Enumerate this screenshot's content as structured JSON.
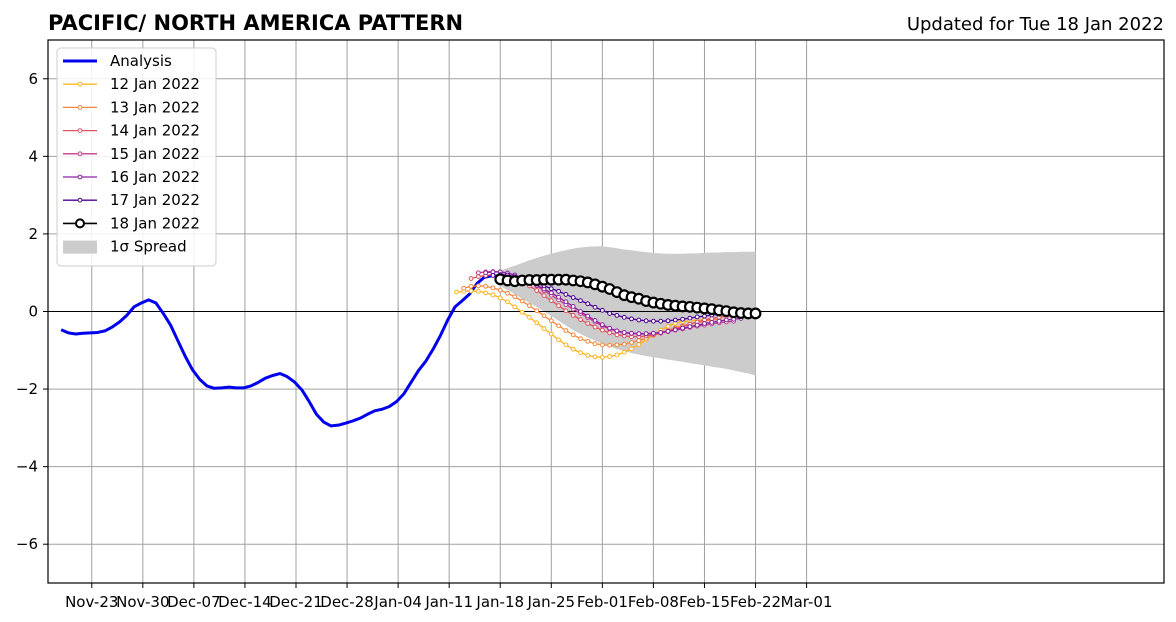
{
  "header": {
    "title": "PACIFIC/ NORTH AMERICA PATTERN",
    "updated": "Updated for Tue 18 Jan 2022"
  },
  "chart_data": {
    "type": "line",
    "title": "PACIFIC/ NORTH AMERICA PATTERN",
    "subtitle": "Updated for Tue 18 Jan 2022",
    "xlabel": "",
    "ylabel": "",
    "x_range_days": [
      -9,
      144
    ],
    "ylim": [
      -7,
      7
    ],
    "y_ticks": [
      -6,
      -4,
      -2,
      0,
      2,
      4,
      6
    ],
    "y_tick_labels": [
      "−6",
      "−4",
      "−2",
      "0",
      "2",
      "4",
      "6"
    ],
    "x_ticks": [
      {
        "label": "Nov-23",
        "day": -3
      },
      {
        "label": "Nov-30",
        "day": 4
      },
      {
        "label": "Dec-07",
        "day": 11
      },
      {
        "label": "Dec-14",
        "day": 18
      },
      {
        "label": "Dec-21",
        "day": 25
      },
      {
        "label": "Dec-28",
        "day": 32
      },
      {
        "label": "Jan-04",
        "day": 39
      },
      {
        "label": "Jan-11",
        "day": 46
      },
      {
        "label": "Jan-18",
        "day": 53
      },
      {
        "label": "Jan-25",
        "day": 60
      },
      {
        "label": "Feb-01",
        "day": 67
      },
      {
        "label": "Feb-08",
        "day": 74
      },
      {
        "label": "Feb-15",
        "day": 81
      },
      {
        "label": "Feb-22",
        "day": 88
      },
      {
        "label": "Mar-01",
        "day": 95
      }
    ],
    "grid": true,
    "legend_position": "top-left",
    "zero_line": true,
    "analysis": {
      "name": "Analysis",
      "color": "#0000ee",
      "points": [
        [
          -7.2,
          -0.47
        ],
        [
          -6.2,
          -0.55
        ],
        [
          -5.2,
          -0.58
        ],
        [
          -4.2,
          -0.56
        ],
        [
          -3.2,
          -0.55
        ],
        [
          -2.2,
          -0.54
        ],
        [
          -1.2,
          -0.5
        ],
        [
          -0.2,
          -0.4
        ],
        [
          0.8,
          -0.27
        ],
        [
          1.8,
          -0.1
        ],
        [
          2.8,
          0.12
        ],
        [
          3.8,
          0.22
        ],
        [
          4.8,
          0.3
        ],
        [
          5.8,
          0.22
        ],
        [
          6.8,
          -0.05
        ],
        [
          7.8,
          -0.35
        ],
        [
          8.8,
          -0.75
        ],
        [
          9.8,
          -1.15
        ],
        [
          10.8,
          -1.5
        ],
        [
          11.8,
          -1.75
        ],
        [
          12.8,
          -1.92
        ],
        [
          13.8,
          -1.98
        ],
        [
          14.8,
          -1.97
        ],
        [
          15.8,
          -1.95
        ],
        [
          16.8,
          -1.97
        ],
        [
          17.8,
          -1.97
        ],
        [
          18.8,
          -1.92
        ],
        [
          19.8,
          -1.83
        ],
        [
          20.8,
          -1.72
        ],
        [
          21.8,
          -1.65
        ],
        [
          22.8,
          -1.6
        ],
        [
          23.8,
          -1.68
        ],
        [
          24.8,
          -1.82
        ],
        [
          25.8,
          -2.02
        ],
        [
          26.8,
          -2.32
        ],
        [
          27.8,
          -2.65
        ],
        [
          28.8,
          -2.85
        ],
        [
          29.8,
          -2.95
        ],
        [
          30.8,
          -2.93
        ],
        [
          31.8,
          -2.88
        ],
        [
          32.8,
          -2.82
        ],
        [
          33.8,
          -2.75
        ],
        [
          34.8,
          -2.65
        ],
        [
          35.8,
          -2.56
        ],
        [
          36.8,
          -2.52
        ],
        [
          37.8,
          -2.45
        ],
        [
          38.8,
          -2.32
        ],
        [
          39.8,
          -2.12
        ],
        [
          40.8,
          -1.82
        ],
        [
          41.8,
          -1.52
        ],
        [
          42.8,
          -1.28
        ],
        [
          43.8,
          -0.97
        ],
        [
          44.8,
          -0.62
        ],
        [
          45.8,
          -0.22
        ],
        [
          46.8,
          0.12
        ],
        [
          47.8,
          0.28
        ],
        [
          48.8,
          0.45
        ],
        [
          49.8,
          0.72
        ],
        [
          50.8,
          0.88
        ],
        [
          51.8,
          0.92
        ]
      ]
    },
    "forecasts": [
      {
        "name": "12 Jan 2022",
        "color": "#ffb41f",
        "start_day": 47,
        "values": [
          0.5,
          0.52,
          0.53,
          0.52,
          0.48,
          0.43,
          0.35,
          0.25,
          0.12,
          -0.02,
          -0.15,
          -0.29,
          -0.44,
          -0.58,
          -0.73,
          -0.86,
          -0.97,
          -1.06,
          -1.13,
          -1.17,
          -1.18,
          -1.16,
          -1.12,
          -1.05,
          -0.96,
          -0.85,
          -0.73,
          -0.6,
          -0.48,
          -0.38,
          -0.3,
          -0.26,
          -0.24,
          -0.22,
          -0.21,
          -0.21
        ]
      },
      {
        "name": "13 Jan 2022",
        "color": "#f5883b",
        "start_day": 48,
        "values": [
          0.6,
          0.65,
          0.66,
          0.65,
          0.61,
          0.55,
          0.47,
          0.38,
          0.27,
          0.15,
          0.02,
          -0.11,
          -0.24,
          -0.37,
          -0.49,
          -0.6,
          -0.7,
          -0.77,
          -0.83,
          -0.86,
          -0.87,
          -0.86,
          -0.84,
          -0.8,
          -0.75,
          -0.69,
          -0.62,
          -0.55,
          -0.48,
          -0.42,
          -0.37,
          -0.32,
          -0.28,
          -0.25,
          -0.22,
          -0.2
        ]
      },
      {
        "name": "14 Jan 2022",
        "color": "#e0525e",
        "start_day": 49,
        "values": [
          0.85,
          0.9,
          0.93,
          0.95,
          0.93,
          0.9,
          0.84,
          0.76,
          0.66,
          0.54,
          0.41,
          0.28,
          0.15,
          0.02,
          -0.1,
          -0.21,
          -0.31,
          -0.4,
          -0.48,
          -0.55,
          -0.6,
          -0.63,
          -0.65,
          -0.65,
          -0.63,
          -0.6,
          -0.56,
          -0.51,
          -0.45,
          -0.39,
          -0.33,
          -0.27,
          -0.22,
          -0.18,
          -0.15,
          -0.12
        ]
      },
      {
        "name": "15 Jan 2022",
        "color": "#c43c8c",
        "start_day": 50,
        "values": [
          1.0,
          1.02,
          1.03,
          1.02,
          0.99,
          0.94,
          0.86,
          0.77,
          0.66,
          0.54,
          0.42,
          0.3,
          0.18,
          0.06,
          -0.05,
          -0.16,
          -0.27,
          -0.37,
          -0.45,
          -0.51,
          -0.55,
          -0.57,
          -0.58,
          -0.58,
          -0.57,
          -0.55,
          -0.52,
          -0.48,
          -0.45,
          -0.41,
          -0.38,
          -0.35,
          -0.32,
          -0.29,
          -0.27,
          -0.25
        ]
      },
      {
        "name": "16 Jan 2022",
        "color": "#8d22a5",
        "start_day": 51,
        "values": [
          1.0,
          1.02,
          1.02,
          0.99,
          0.94,
          0.87,
          0.78,
          0.68,
          0.58,
          0.48,
          0.37,
          0.25,
          0.13,
          0.0,
          -0.12,
          -0.23,
          -0.34,
          -0.43,
          -0.5,
          -0.54,
          -0.56,
          -0.57,
          -0.57,
          -0.56,
          -0.54,
          -0.51,
          -0.47,
          -0.43,
          -0.39,
          -0.35,
          -0.31,
          -0.28,
          -0.25,
          -0.22,
          -0.2,
          -0.18
        ]
      },
      {
        "name": "17 Jan 2022",
        "color": "#4c0095",
        "start_day": 52,
        "values": [
          0.93,
          0.95,
          0.94,
          0.9,
          0.86,
          0.8,
          0.73,
          0.66,
          0.59,
          0.52,
          0.44,
          0.36,
          0.28,
          0.2,
          0.11,
          0.03,
          -0.05,
          -0.1,
          -0.15,
          -0.19,
          -0.22,
          -0.24,
          -0.25,
          -0.25,
          -0.24,
          -0.22,
          -0.2,
          -0.17,
          -0.14,
          -0.12,
          -0.09,
          -0.07,
          -0.05,
          -0.03,
          -0.01,
          0.0
        ]
      },
      {
        "name": "18 Jan 2022",
        "color": "#000000",
        "start_day": 53,
        "values": [
          0.83,
          0.8,
          0.78,
          0.8,
          0.81,
          0.81,
          0.82,
          0.82,
          0.82,
          0.82,
          0.8,
          0.78,
          0.75,
          0.7,
          0.64,
          0.58,
          0.5,
          0.42,
          0.37,
          0.33,
          0.27,
          0.23,
          0.2,
          0.17,
          0.15,
          0.13,
          0.12,
          0.1,
          0.08,
          0.06,
          0.03,
          0.01,
          -0.02,
          -0.04,
          -0.05,
          -0.05
        ]
      }
    ],
    "spread": {
      "name": "1σ Spread",
      "color": "#cccccc",
      "start_day": 53,
      "upper": [
        1.05,
        1.12,
        1.18,
        1.25,
        1.32,
        1.38,
        1.44,
        1.49,
        1.54,
        1.58,
        1.62,
        1.65,
        1.67,
        1.68,
        1.68,
        1.66,
        1.63,
        1.6,
        1.58,
        1.55,
        1.53,
        1.51,
        1.5,
        1.49,
        1.49,
        1.49,
        1.5,
        1.5,
        1.51,
        1.52,
        1.52,
        1.53,
        1.53,
        1.54,
        1.54,
        1.54
      ],
      "lower": [
        0.65,
        0.55,
        0.44,
        0.33,
        0.22,
        0.12,
        0.0,
        -0.12,
        -0.24,
        -0.36,
        -0.48,
        -0.58,
        -0.67,
        -0.75,
        -0.83,
        -0.9,
        -0.97,
        -1.02,
        -1.07,
        -1.11,
        -1.15,
        -1.18,
        -1.21,
        -1.24,
        -1.27,
        -1.3,
        -1.33,
        -1.36,
        -1.39,
        -1.42,
        -1.45,
        -1.48,
        -1.52,
        -1.56,
        -1.6,
        -1.65
      ]
    }
  }
}
